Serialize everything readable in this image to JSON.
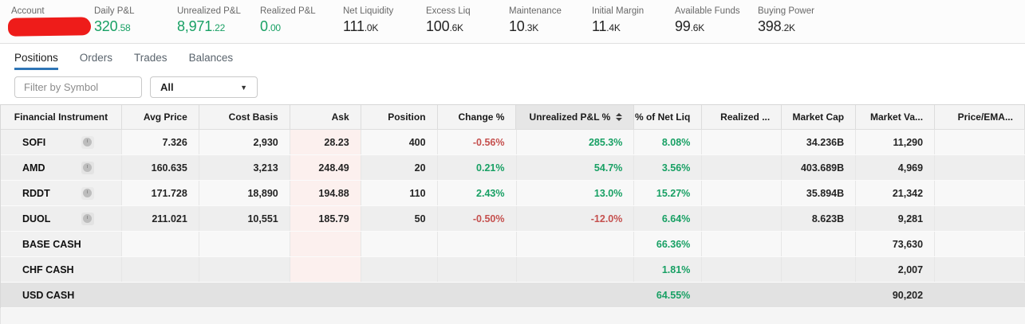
{
  "colors": {
    "green": "#18a064",
    "red": "#c5504e",
    "accent_blue": "#2e75b6",
    "ask_highlight_bg": "#fcf0ee",
    "redaction_red": "#ee1c1a"
  },
  "account_bar": {
    "items": [
      {
        "label": "Account",
        "value_main": "",
        "value_small": "",
        "style": "redacted"
      },
      {
        "label": "Daily P&L",
        "value_main": "320",
        "value_small": ".58",
        "style": "green"
      },
      {
        "label": "Unrealized P&L",
        "value_main": "8,971",
        "value_small": ".22",
        "style": "green"
      },
      {
        "label": "Realized P&L",
        "value_main": "0",
        "value_small": ".00",
        "style": "green"
      },
      {
        "label": "Net Liquidity",
        "value_main": "111",
        "value_small": ".0K",
        "style": "dark"
      },
      {
        "label": "Excess Liq",
        "value_main": "100",
        "value_small": ".6K",
        "style": "dark"
      },
      {
        "label": "Maintenance",
        "value_main": "10",
        "value_small": ".3K",
        "style": "dark"
      },
      {
        "label": "Initial Margin",
        "value_main": "11",
        "value_small": ".4K",
        "style": "dark"
      },
      {
        "label": "Available Funds",
        "value_main": "99",
        "value_small": ".6K",
        "style": "dark"
      },
      {
        "label": "Buying Power",
        "value_main": "398",
        "value_small": ".2K",
        "style": "dark"
      }
    ]
  },
  "tabs": [
    {
      "label": "Positions",
      "active": true
    },
    {
      "label": "Orders",
      "active": false
    },
    {
      "label": "Trades",
      "active": false
    },
    {
      "label": "Balances",
      "active": false
    }
  ],
  "filter": {
    "input_placeholder": "Filter by Symbol",
    "dropdown_value": "All",
    "dropdown_icon": "▼"
  },
  "icons": {
    "sort": "sort-arrows",
    "symbol_status": "delayed-data-clock",
    "dropdown_arrow": "chevron-down"
  },
  "table": {
    "columns": [
      {
        "key": "symbol",
        "label": "Financial Instrument"
      },
      {
        "key": "avg_price",
        "label": "Avg Price"
      },
      {
        "key": "cost_basis",
        "label": "Cost Basis"
      },
      {
        "key": "ask",
        "label": "Ask"
      },
      {
        "key": "position",
        "label": "Position"
      },
      {
        "key": "change_pct",
        "label": "Change %",
        "colored": true
      },
      {
        "key": "unrealized_pnl_pct",
        "label": "Unrealized P&L %",
        "colored": true,
        "sorted": true
      },
      {
        "key": "pct_net_liq",
        "label": "% of Net Liq",
        "colored": true
      },
      {
        "key": "realized",
        "label": "Realized ..."
      },
      {
        "key": "market_cap",
        "label": "Market Cap"
      },
      {
        "key": "market_value",
        "label": "Market Va..."
      },
      {
        "key": "price_ema",
        "label": "Price/EMA..."
      }
    ],
    "rows": [
      {
        "symbol": "SOFI",
        "has_clock_icon": true,
        "avg_price": "7.326",
        "cost_basis": "2,930",
        "ask": "28.23",
        "position": "400",
        "change_pct": "-0.56%",
        "unrealized_pnl_pct": "285.3%",
        "pct_net_liq": "8.08%",
        "realized": "",
        "market_cap": "34.236B",
        "market_value": "11,290",
        "price_ema": "",
        "highlighted": false
      },
      {
        "symbol": "AMD",
        "has_clock_icon": true,
        "avg_price": "160.635",
        "cost_basis": "3,213",
        "ask": "248.49",
        "position": "20",
        "change_pct": "0.21%",
        "unrealized_pnl_pct": "54.7%",
        "pct_net_liq": "3.56%",
        "realized": "",
        "market_cap": "403.689B",
        "market_value": "4,969",
        "price_ema": "",
        "highlighted": false
      },
      {
        "symbol": "RDDT",
        "has_clock_icon": true,
        "avg_price": "171.728",
        "cost_basis": "18,890",
        "ask": "194.88",
        "position": "110",
        "change_pct": "2.43%",
        "unrealized_pnl_pct": "13.0%",
        "pct_net_liq": "15.27%",
        "realized": "",
        "market_cap": "35.894B",
        "market_value": "21,342",
        "price_ema": "",
        "highlighted": false
      },
      {
        "symbol": "DUOL",
        "has_clock_icon": true,
        "avg_price": "211.021",
        "cost_basis": "10,551",
        "ask": "185.79",
        "position": "50",
        "change_pct": "-0.50%",
        "unrealized_pnl_pct": "-12.0%",
        "pct_net_liq": "6.64%",
        "realized": "",
        "market_cap": "8.623B",
        "market_value": "9,281",
        "price_ema": "",
        "highlighted": false
      },
      {
        "symbol": "BASE CASH",
        "has_clock_icon": false,
        "avg_price": "",
        "cost_basis": "",
        "ask": "",
        "position": "",
        "change_pct": "",
        "unrealized_pnl_pct": "",
        "pct_net_liq": "66.36%",
        "realized": "",
        "market_cap": "",
        "market_value": "73,630",
        "price_ema": "",
        "highlighted": false
      },
      {
        "symbol": "CHF CASH",
        "has_clock_icon": false,
        "avg_price": "",
        "cost_basis": "",
        "ask": "",
        "position": "",
        "change_pct": "",
        "unrealized_pnl_pct": "",
        "pct_net_liq": "1.81%",
        "realized": "",
        "market_cap": "",
        "market_value": "2,007",
        "price_ema": "",
        "highlighted": false
      },
      {
        "symbol": "USD CASH",
        "has_clock_icon": false,
        "avg_price": "",
        "cost_basis": "",
        "ask": "",
        "position": "",
        "change_pct": "",
        "unrealized_pnl_pct": "",
        "pct_net_liq": "64.55%",
        "realized": "",
        "market_cap": "",
        "market_value": "90,202",
        "price_ema": "",
        "highlighted": true
      }
    ]
  }
}
